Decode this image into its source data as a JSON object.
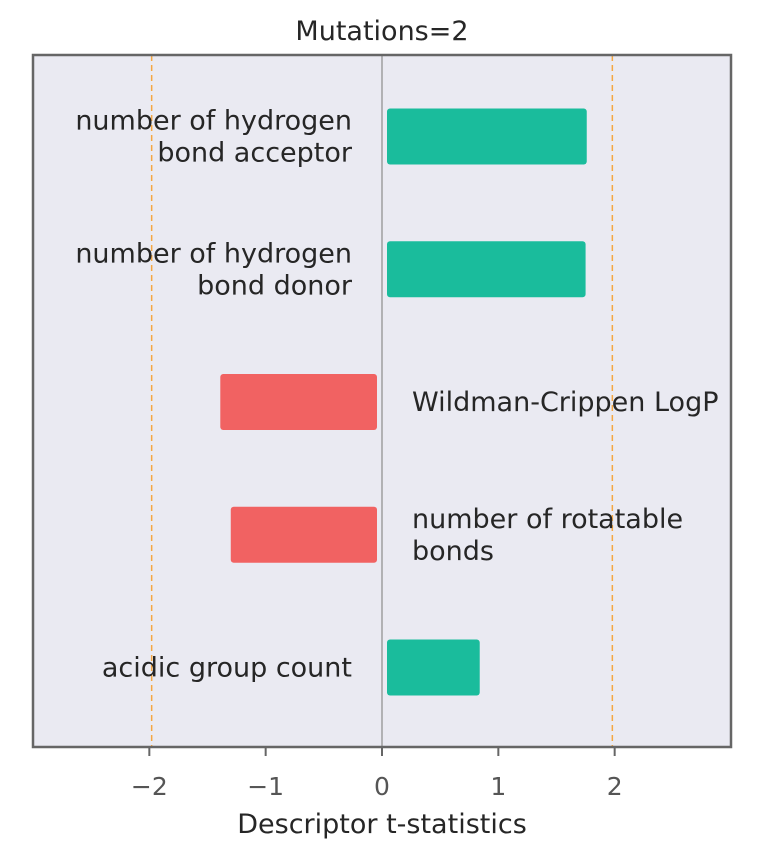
{
  "chart_data": {
    "type": "bar",
    "orientation": "horizontal",
    "title": "Mutations=2",
    "xlabel": "Descriptor t-statistics",
    "ylabel": "",
    "xlim": [
      -3,
      3
    ],
    "xticks": [
      {
        "value": -2,
        "label": "−2"
      },
      {
        "value": -1,
        "label": "−1"
      },
      {
        "value": 0,
        "label": "0"
      },
      {
        "value": 1,
        "label": "1"
      },
      {
        "value": 2,
        "label": "2"
      }
    ],
    "threshold_lines": [
      -1.98,
      1.98
    ],
    "grid": false,
    "categories": [
      {
        "lines": [
          "number of hydrogen",
          "bond acceptor"
        ],
        "value": 1.76
      },
      {
        "lines": [
          "number of hydrogen",
          "bond donor"
        ],
        "value": 1.75
      },
      {
        "lines": [
          "Wildman-Crippen LogP"
        ],
        "value": -1.39
      },
      {
        "lines": [
          "number of rotatable",
          "bonds"
        ],
        "value": -1.3
      },
      {
        "lines": [
          "acidic group count"
        ],
        "value": 0.84
      }
    ],
    "colors": {
      "positive": "#1abc9c",
      "negative": "#f16262",
      "threshold": "#f5a742",
      "zero_line": "#8c8c8c",
      "plot_background": "#eaeaf2",
      "frame": "#666666"
    }
  }
}
